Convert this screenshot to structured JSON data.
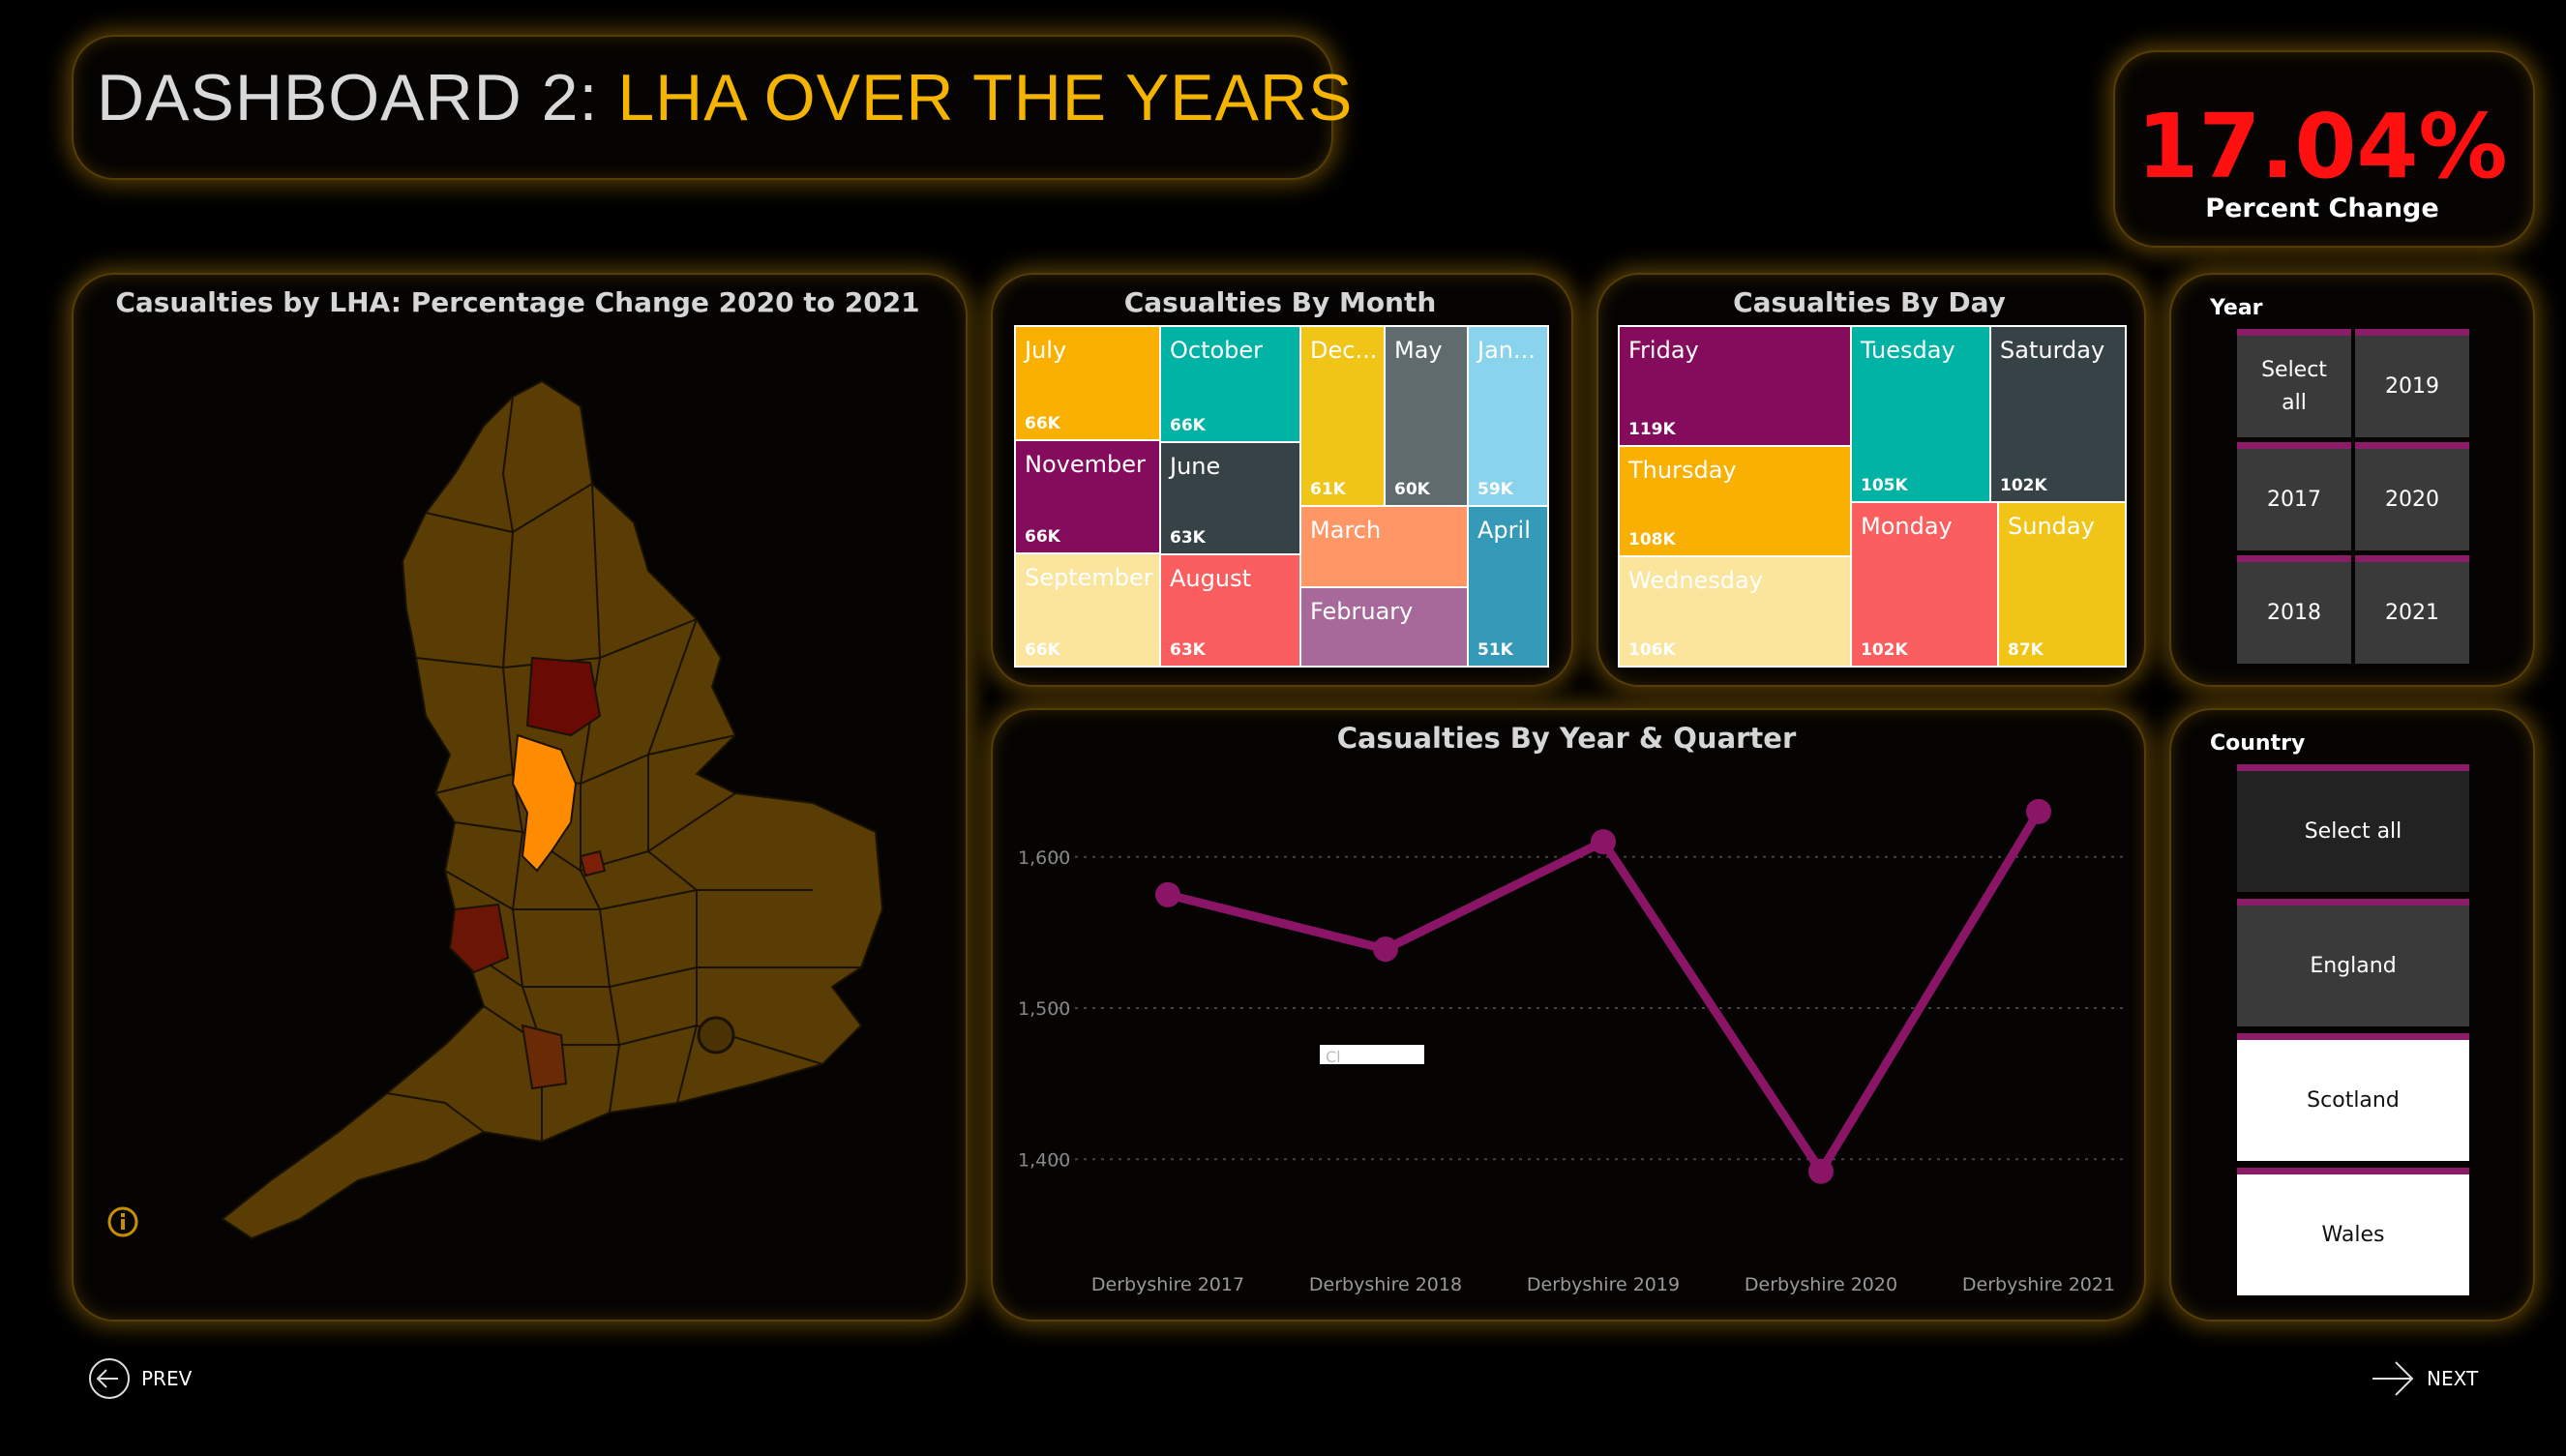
{
  "header": {
    "title_prefix": "DASHBOARD 2:",
    "title_main": "LHA OVER THE YEARS"
  },
  "kpi": {
    "value": "17.04%",
    "label": "Percent Change",
    "color": "#ff1010"
  },
  "map": {
    "title": "Casualties by LHA: Percentage Change 2020 to 2021",
    "info_icon": "info-icon"
  },
  "month_treemap": {
    "title": "Casualties By Month",
    "cells": [
      {
        "name": "July",
        "value": "66K",
        "color": "#f9b000"
      },
      {
        "name": "November",
        "value": "66K",
        "color": "#850c5c"
      },
      {
        "name": "September",
        "value": "66K",
        "color": "#fbe59d"
      },
      {
        "name": "October",
        "value": "66K",
        "color": "#00b3a4"
      },
      {
        "name": "June",
        "value": "63K",
        "color": "#374247"
      },
      {
        "name": "August",
        "value": "63K",
        "color": "#fb5e5e"
      },
      {
        "name": "Dec...",
        "value": "61K",
        "color": "#f0c517"
      },
      {
        "name": "May",
        "value": "60K",
        "color": "#5f6b6d"
      },
      {
        "name": "Jan...",
        "value": "59K",
        "color": "#8ad3ed"
      },
      {
        "name": "March",
        "value": "",
        "color": "#fe9666"
      },
      {
        "name": "February",
        "value": "",
        "color": "#a66999"
      },
      {
        "name": "April",
        "value": "51K",
        "color": "#3599b8"
      }
    ]
  },
  "day_treemap": {
    "title": "Casualties By Day",
    "cells": [
      {
        "name": "Friday",
        "value": "119K",
        "color": "#850c5c"
      },
      {
        "name": "Thursday",
        "value": "108K",
        "color": "#f9b000"
      },
      {
        "name": "Wednesday",
        "value": "106K",
        "color": "#fbe59d"
      },
      {
        "name": "Tuesday",
        "value": "105K",
        "color": "#00b3a4"
      },
      {
        "name": "Saturday",
        "value": "102K",
        "color": "#374247"
      },
      {
        "name": "Monday",
        "value": "102K",
        "color": "#fb5e5e"
      },
      {
        "name": "Sunday",
        "value": "87K",
        "color": "#f0c517"
      }
    ]
  },
  "chart_data": {
    "type": "line",
    "title": "Casualties By Year & Quarter",
    "categories": [
      "Derbyshire 2017",
      "Derbyshire 2018",
      "Derbyshire 2019",
      "Derbyshire 2020",
      "Derbyshire 2021"
    ],
    "series": [
      {
        "values": [
          1575,
          1539,
          1610,
          1392,
          1630
        ],
        "color": "#8a1466"
      }
    ],
    "yticks": [
      "1,600",
      "1,500",
      "1,400"
    ],
    "ytick_values": [
      1600,
      1500,
      1400
    ],
    "ylim": [
      1340,
      1660
    ],
    "grid": true,
    "overlay_label": "Cl"
  },
  "year_slicer": {
    "title": "Year",
    "options": [
      "Select all",
      "2019",
      "2017",
      "2020",
      "2018",
      "2021"
    ]
  },
  "country_slicer": {
    "title": "Country",
    "options": [
      "Select all",
      "England",
      "Scotland",
      "Wales"
    ]
  },
  "nav": {
    "prev": "PREV",
    "next": "NEXT"
  }
}
